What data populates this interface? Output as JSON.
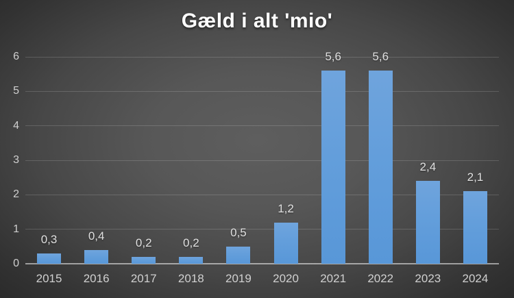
{
  "title": "Gæld i alt 'mio'",
  "chart_data": {
    "type": "bar",
    "title": "Gæld i alt 'mio'",
    "categories": [
      "2015",
      "2016",
      "2017",
      "2018",
      "2019",
      "2020",
      "2021",
      "2022",
      "2023",
      "2024"
    ],
    "values": [
      0.3,
      0.4,
      0.2,
      0.2,
      0.5,
      1.2,
      5.6,
      5.6,
      2.4,
      2.1
    ],
    "value_labels": [
      "0,3",
      "0,4",
      "0,2",
      "0,2",
      "0,5",
      "1,2",
      "5,6",
      "5,6",
      "2,4",
      "2,1"
    ],
    "xlabel": "",
    "ylabel": "",
    "ylim": [
      0,
      6
    ],
    "yticks": [
      0,
      1,
      2,
      3,
      4,
      5,
      6
    ],
    "ytick_labels": [
      "0",
      "1",
      "2",
      "3",
      "4",
      "5",
      "6"
    ],
    "grid": true,
    "legend": "none",
    "colors": {
      "bar_top": "#6fa4dd",
      "bar_bottom": "#5897d8",
      "background_center": "#5e5e5e",
      "background_edge": "#252525",
      "gridline": "rgba(255,255,255,0.16)",
      "axis_line": "rgba(255,255,255,0.52)",
      "tick_text": "#cfcfcf",
      "data_label_text": "#e0e0e0",
      "title_text": "#ffffff"
    }
  }
}
